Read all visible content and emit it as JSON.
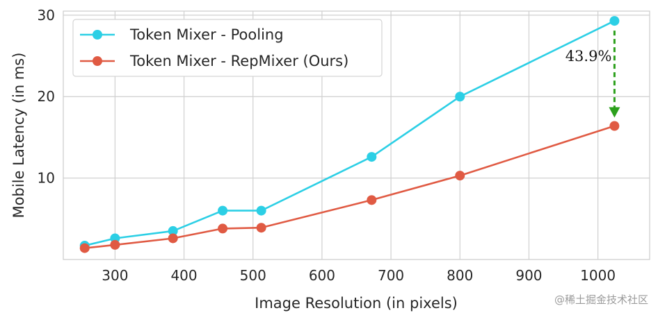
{
  "chart_data": {
    "type": "line",
    "xlabel": "Image Resolution (in pixels)",
    "ylabel": "Mobile Latency (in ms)",
    "xlim": [
      225,
      1075
    ],
    "ylim": [
      0,
      30.5
    ],
    "xticks": [
      300,
      400,
      500,
      600,
      700,
      800,
      900,
      1000
    ],
    "yticks": [
      10,
      20,
      30
    ],
    "grid": true,
    "legend_position": "top-left",
    "series": [
      {
        "name": "Token Mixer - Pooling",
        "color": "#2ccfe5",
        "x": [
          256,
          300,
          384,
          456,
          512,
          672,
          800,
          1024
        ],
        "y": [
          1.7,
          2.6,
          3.5,
          6.0,
          6.0,
          12.6,
          20.0,
          29.3
        ]
      },
      {
        "name": "Token Mixer - RepMixer (Ours)",
        "color": "#e05a43",
        "x": [
          256,
          300,
          384,
          456,
          512,
          672,
          800,
          1024
        ],
        "y": [
          1.4,
          1.8,
          2.6,
          3.8,
          3.9,
          7.3,
          10.3,
          16.4
        ]
      }
    ],
    "annotation": {
      "text": "43.9%",
      "x": 1024,
      "from_y": 29.3,
      "to_y": 16.4,
      "color": "#2ca01c"
    }
  },
  "watermark": "@稀土掘金技术社区"
}
